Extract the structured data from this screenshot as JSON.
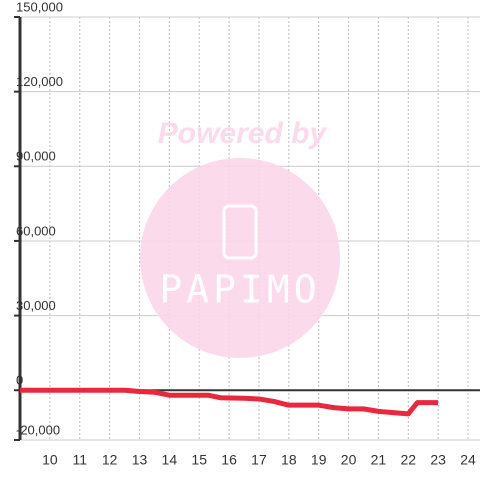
{
  "chart_data": {
    "type": "line",
    "watermark": [
      "Powered by",
      "PAPIMO"
    ],
    "x": [
      9,
      10,
      11,
      12,
      12.5,
      13,
      13.5,
      14,
      15,
      15.3,
      15.7,
      16.5,
      17,
      17.5,
      18,
      19,
      19.5,
      20,
      20.5,
      21,
      21.5,
      22,
      22.3,
      23
    ],
    "series": [
      {
        "color": "#e8283c",
        "values": [
          0,
          0,
          0,
          0,
          0,
          -500,
          -800,
          -2000,
          -2000,
          -2000,
          -3000,
          -3200,
          -3500,
          -4500,
          -6000,
          -6000,
          -7000,
          -7500,
          -7500,
          -8500,
          -9000,
          -9500,
          -5000,
          -5000
        ]
      }
    ],
    "xlim": [
      9,
      24.4
    ],
    "xticks": [
      10,
      11,
      12,
      13,
      14,
      15,
      16,
      17,
      18,
      19,
      20,
      21,
      22,
      23,
      24
    ],
    "ylim": [
      -20000,
      150000
    ],
    "yticks": [
      {
        "value": 150000,
        "label": "150,000"
      },
      {
        "value": 120000,
        "label": "120,000"
      },
      {
        "value": 90000,
        "label": "90,000"
      },
      {
        "value": 60000,
        "label": "60,000"
      },
      {
        "value": 30000,
        "label": "30,000"
      },
      0,
      {
        "value": -20000,
        "label": "-20,000"
      }
    ],
    "grid": true
  }
}
